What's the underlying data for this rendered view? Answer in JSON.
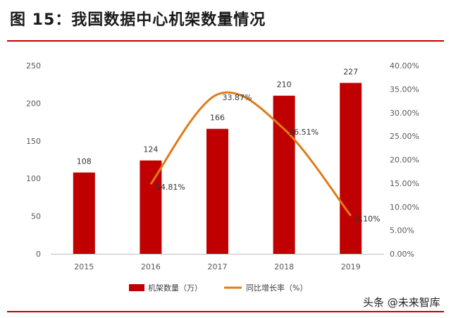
{
  "header": {
    "title": "图 15：我国数据中心机架数量情况"
  },
  "watermark": {
    "text": "头条 @未来智库"
  },
  "colors": {
    "bar": "#c00000",
    "line": "#e07b1a",
    "rule": "#c00000"
  },
  "chart_data": {
    "type": "bar",
    "categories": [
      "2015",
      "2016",
      "2017",
      "2018",
      "2019"
    ],
    "series": [
      {
        "name": "机架数量（万）",
        "kind": "bar",
        "axis": "left",
        "values": [
          108,
          124,
          166,
          210,
          227
        ],
        "labels": [
          "108",
          "124",
          "166",
          "210",
          "227"
        ]
      },
      {
        "name": "同比增长率（%）",
        "kind": "line",
        "axis": "right",
        "values": [
          null,
          14.81,
          33.87,
          26.51,
          8.1
        ],
        "labels": [
          "",
          "14.81%",
          "33.87%",
          "26.51%",
          "8.10%"
        ]
      }
    ],
    "ylim": [
      0,
      250
    ],
    "yticks": [
      "0",
      "50",
      "100",
      "150",
      "200",
      "250"
    ],
    "y2lim": [
      0,
      40
    ],
    "y2ticks": [
      "0.00%",
      "5.00%",
      "10.00%",
      "15.00%",
      "20.00%",
      "25.00%",
      "30.00%",
      "35.00%",
      "40.00%"
    ],
    "grid": false,
    "legend": "bottom-center",
    "smooth_line": true
  }
}
